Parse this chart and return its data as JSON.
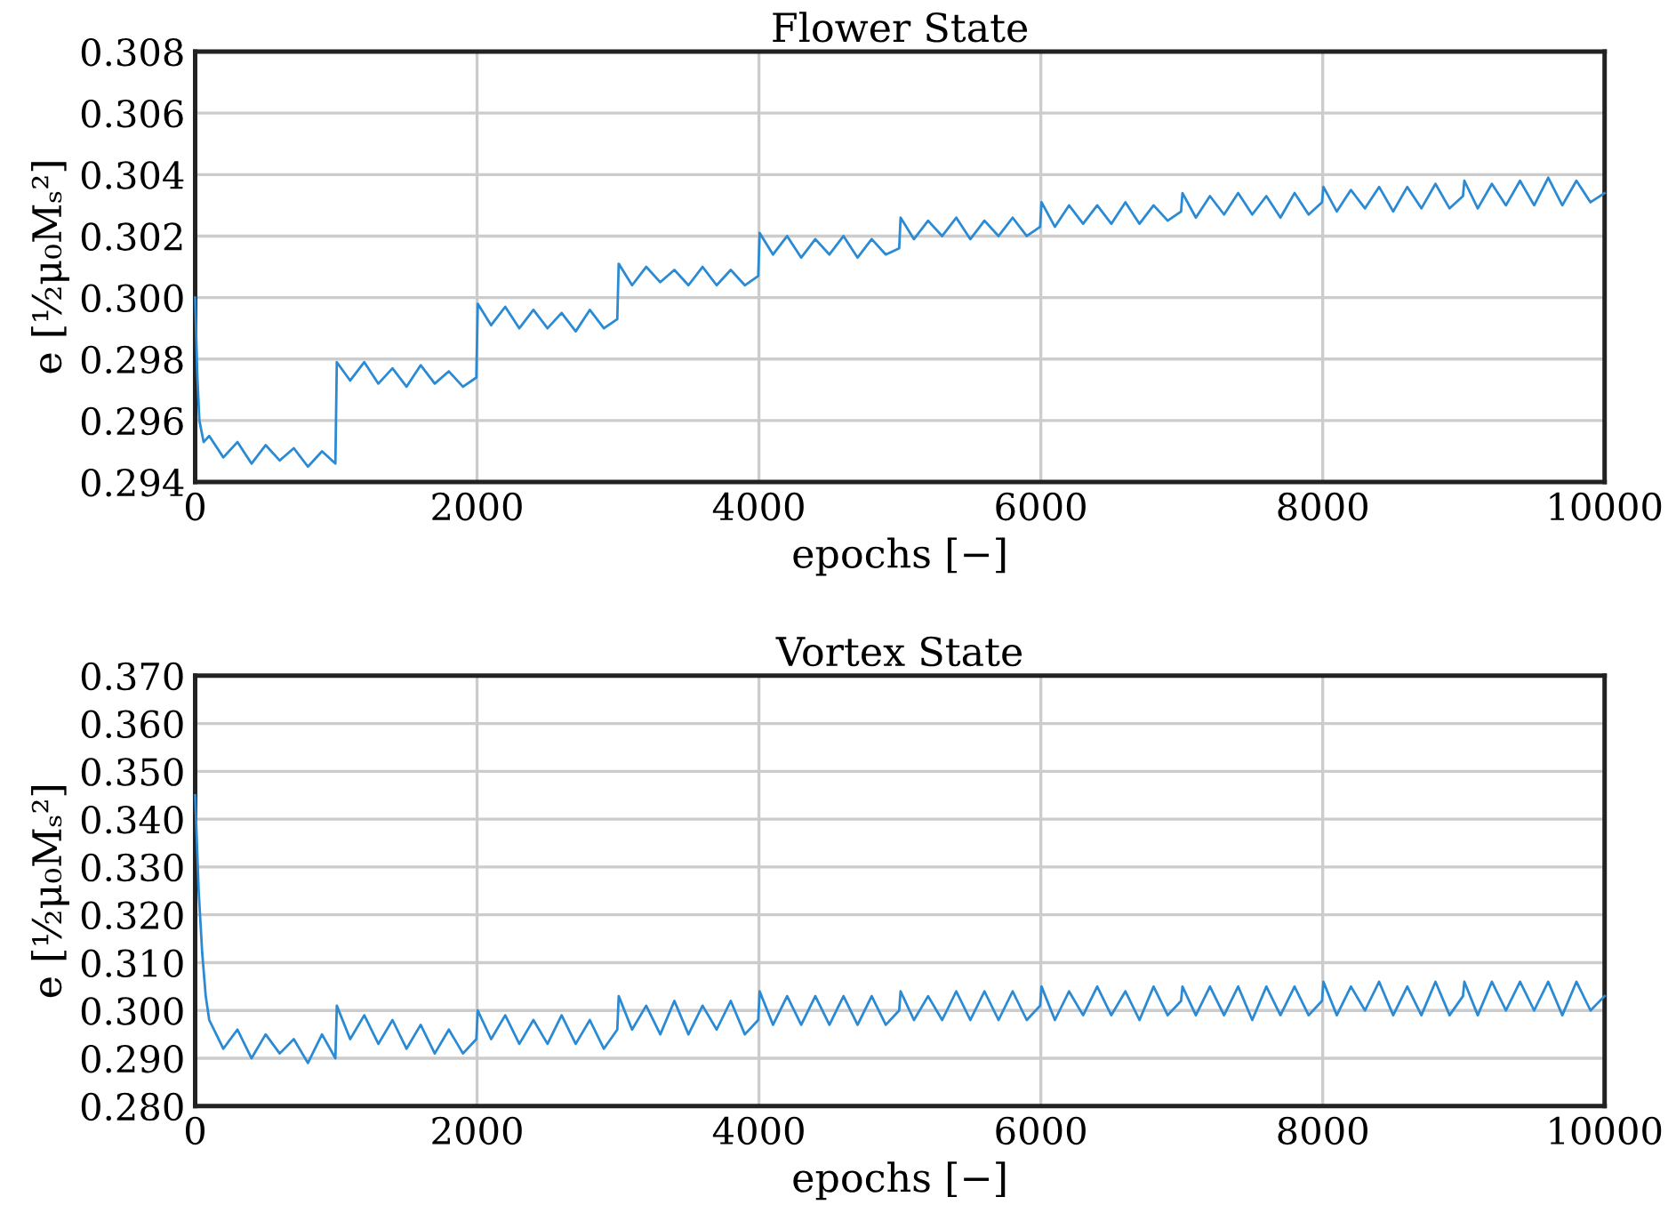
{
  "chart_data": [
    {
      "type": "line",
      "title": "Flower State",
      "xlabel": "epochs [−]",
      "ylabel": "e [½μ₀Mₛ²]",
      "xlim": [
        0,
        10000
      ],
      "xticks": [
        0,
        2000,
        4000,
        6000,
        8000,
        10000
      ],
      "ylim": [
        0.294,
        0.308
      ],
      "yticks": [
        {
          "value": 0.294,
          "label": "0.294"
        },
        {
          "value": 0.296,
          "label": "0.296"
        },
        {
          "value": 0.298,
          "label": "0.298"
        },
        {
          "value": 0.3,
          "label": "0.300"
        },
        {
          "value": 0.302,
          "label": "0.302"
        },
        {
          "value": 0.304,
          "label": "0.304"
        },
        {
          "value": 0.306,
          "label": "0.306"
        },
        {
          "value": 0.308,
          "label": "0.308"
        }
      ],
      "grid": true,
      "legend": false,
      "marker": "none",
      "line_style": "solid",
      "series": [
        {
          "color": "#2b8ad4",
          "x": [
            0,
            15,
            30,
            60,
            100,
            200,
            300,
            400,
            500,
            600,
            700,
            800,
            900,
            995,
            1005,
            1100,
            1200,
            1300,
            1400,
            1500,
            1600,
            1700,
            1800,
            1900,
            1995,
            2005,
            2100,
            2200,
            2300,
            2400,
            2500,
            2600,
            2700,
            2800,
            2900,
            2995,
            3005,
            3100,
            3200,
            3300,
            3400,
            3500,
            3600,
            3700,
            3800,
            3900,
            3995,
            4005,
            4100,
            4200,
            4300,
            4400,
            4500,
            4600,
            4700,
            4800,
            4900,
            4995,
            5005,
            5100,
            5200,
            5300,
            5400,
            5500,
            5600,
            5700,
            5800,
            5900,
            5995,
            6005,
            6100,
            6200,
            6300,
            6400,
            6500,
            6600,
            6700,
            6800,
            6900,
            6995,
            7005,
            7100,
            7200,
            7300,
            7400,
            7500,
            7600,
            7700,
            7800,
            7900,
            7995,
            8005,
            8100,
            8200,
            8300,
            8400,
            8500,
            8600,
            8700,
            8800,
            8900,
            8995,
            9005,
            9100,
            9200,
            9300,
            9400,
            9500,
            9600,
            9700,
            9800,
            9900,
            10000
          ],
          "values": [
            0.3,
            0.2975,
            0.296,
            0.2953,
            0.2955,
            0.2948,
            0.2953,
            0.2946,
            0.2952,
            0.2947,
            0.2951,
            0.2945,
            0.295,
            0.2946,
            0.2979,
            0.2973,
            0.2979,
            0.2972,
            0.2977,
            0.2971,
            0.2978,
            0.2972,
            0.2976,
            0.2971,
            0.2974,
            0.2998,
            0.2991,
            0.2997,
            0.299,
            0.2996,
            0.299,
            0.2995,
            0.2989,
            0.2996,
            0.299,
            0.2993,
            0.3011,
            0.3004,
            0.301,
            0.3005,
            0.3009,
            0.3004,
            0.301,
            0.3004,
            0.3009,
            0.3004,
            0.3007,
            0.3021,
            0.3014,
            0.302,
            0.3013,
            0.3019,
            0.3014,
            0.302,
            0.3013,
            0.3019,
            0.3014,
            0.3016,
            0.3026,
            0.3019,
            0.3025,
            0.302,
            0.3026,
            0.3019,
            0.3025,
            0.302,
            0.3026,
            0.302,
            0.3023,
            0.3031,
            0.3023,
            0.303,
            0.3024,
            0.303,
            0.3024,
            0.3031,
            0.3024,
            0.303,
            0.3025,
            0.3028,
            0.3034,
            0.3026,
            0.3033,
            0.3027,
            0.3034,
            0.3027,
            0.3033,
            0.3026,
            0.3034,
            0.3027,
            0.3031,
            0.3036,
            0.3028,
            0.3035,
            0.3029,
            0.3036,
            0.3028,
            0.3036,
            0.3029,
            0.3037,
            0.3029,
            0.3033,
            0.3038,
            0.3029,
            0.3037,
            0.303,
            0.3038,
            0.303,
            0.3039,
            0.303,
            0.3038,
            0.3031,
            0.3034
          ]
        }
      ]
    },
    {
      "type": "line",
      "title": "Vortex State",
      "xlabel": "epochs [−]",
      "ylabel": "e [½μ₀Mₛ²]",
      "xlim": [
        0,
        10000
      ],
      "xticks": [
        0,
        2000,
        4000,
        6000,
        8000,
        10000
      ],
      "ylim": [
        0.28,
        0.37
      ],
      "yticks": [
        {
          "value": 0.28,
          "label": "0.280"
        },
        {
          "value": 0.29,
          "label": "0.290"
        },
        {
          "value": 0.3,
          "label": "0.300"
        },
        {
          "value": 0.31,
          "label": "0.310"
        },
        {
          "value": 0.32,
          "label": "0.320"
        },
        {
          "value": 0.33,
          "label": "0.330"
        },
        {
          "value": 0.34,
          "label": "0.340"
        },
        {
          "value": 0.35,
          "label": "0.350"
        },
        {
          "value": 0.36,
          "label": "0.360"
        },
        {
          "value": 0.37,
          "label": "0.370"
        }
      ],
      "grid": true,
      "legend": false,
      "marker": "none",
      "line_style": "solid",
      "series": [
        {
          "color": "#2b8ad4",
          "x": [
            0,
            25,
            50,
            75,
            100,
            150,
            200,
            300,
            400,
            500,
            600,
            700,
            800,
            900,
            995,
            1005,
            1100,
            1200,
            1300,
            1400,
            1500,
            1600,
            1700,
            1800,
            1900,
            1995,
            2005,
            2100,
            2200,
            2300,
            2400,
            2500,
            2600,
            2700,
            2800,
            2900,
            2995,
            3005,
            3100,
            3200,
            3300,
            3400,
            3500,
            3600,
            3700,
            3800,
            3900,
            3995,
            4005,
            4100,
            4200,
            4300,
            4400,
            4500,
            4600,
            4700,
            4800,
            4900,
            4995,
            5005,
            5100,
            5200,
            5300,
            5400,
            5500,
            5600,
            5700,
            5800,
            5900,
            5995,
            6005,
            6100,
            6200,
            6300,
            6400,
            6500,
            6600,
            6700,
            6800,
            6900,
            6995,
            7005,
            7100,
            7200,
            7300,
            7400,
            7500,
            7600,
            7700,
            7800,
            7900,
            7995,
            8005,
            8100,
            8200,
            8300,
            8400,
            8500,
            8600,
            8700,
            8800,
            8900,
            8995,
            9005,
            9100,
            9200,
            9300,
            9400,
            9500,
            9600,
            9700,
            9800,
            9900,
            10000
          ],
          "values": [
            0.345,
            0.325,
            0.312,
            0.303,
            0.298,
            0.295,
            0.292,
            0.296,
            0.29,
            0.295,
            0.291,
            0.294,
            0.289,
            0.295,
            0.29,
            0.301,
            0.294,
            0.299,
            0.293,
            0.298,
            0.292,
            0.297,
            0.291,
            0.296,
            0.291,
            0.294,
            0.3,
            0.294,
            0.299,
            0.293,
            0.298,
            0.293,
            0.299,
            0.293,
            0.298,
            0.292,
            0.296,
            0.303,
            0.296,
            0.301,
            0.295,
            0.302,
            0.295,
            0.301,
            0.296,
            0.302,
            0.295,
            0.298,
            0.304,
            0.297,
            0.303,
            0.297,
            0.303,
            0.297,
            0.303,
            0.297,
            0.303,
            0.297,
            0.3,
            0.304,
            0.298,
            0.303,
            0.298,
            0.304,
            0.298,
            0.304,
            0.298,
            0.304,
            0.298,
            0.301,
            0.305,
            0.298,
            0.304,
            0.299,
            0.305,
            0.299,
            0.304,
            0.298,
            0.305,
            0.299,
            0.302,
            0.305,
            0.299,
            0.305,
            0.299,
            0.305,
            0.298,
            0.305,
            0.299,
            0.305,
            0.299,
            0.302,
            0.306,
            0.299,
            0.305,
            0.3,
            0.306,
            0.299,
            0.305,
            0.299,
            0.306,
            0.299,
            0.303,
            0.306,
            0.299,
            0.306,
            0.3,
            0.306,
            0.3,
            0.306,
            0.299,
            0.306,
            0.3,
            0.303
          ]
        }
      ]
    }
  ]
}
